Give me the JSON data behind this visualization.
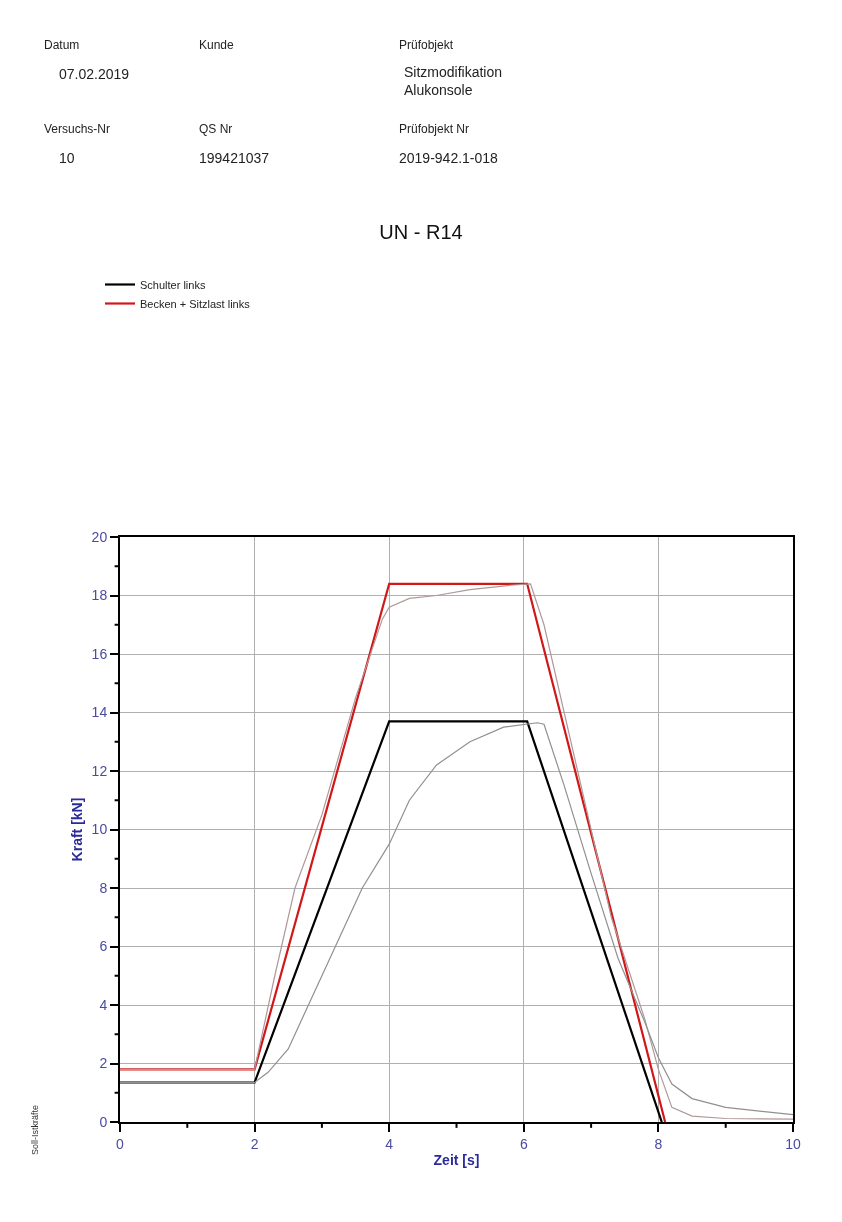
{
  "chart_data": {
    "type": "line",
    "title": "UN - R14",
    "xlabel": "Zeit [s]",
    "ylabel": "Kraft [kN]",
    "annotations": [
      "Datum",
      "07.02.2019",
      "Kunde",
      "Prüfobjekt",
      "Sitzmodifikation Alukonsole",
      "Versuchs-Nr",
      "10",
      "QS Nr",
      "199421037",
      "Prüfobjekt Nr",
      "2019-942.1-018",
      "Soll-Istkräfte"
    ],
    "series": [
      {
        "name": "Schulter links",
        "color": "#000000",
        "x": [
          0,
          2,
          4,
          6.05,
          8.05
        ],
        "values": [
          1.35,
          1.35,
          13.7,
          13.7,
          0
        ]
      },
      {
        "name": "Becken + Sitzlast links",
        "color": "#d01818",
        "x": [
          0,
          2,
          4,
          6.05,
          8.1
        ],
        "values": [
          1.8,
          1.8,
          18.4,
          18.4,
          0
        ]
      },
      {
        "color": "#b09898",
        "x": [
          0,
          2,
          2.3,
          2.6,
          3.0,
          3.5,
          3.9,
          4.0,
          4.3,
          4.7,
          5.2,
          5.8,
          6.1,
          6.3,
          6.8,
          7.3,
          7.8,
          8.0,
          8.2,
          8.5,
          9,
          10
        ],
        "values": [
          1.8,
          1.8,
          5,
          8,
          10.5,
          14.5,
          17.2,
          17.6,
          17.9,
          18.0,
          18.2,
          18.35,
          18.4,
          17,
          12,
          7,
          3.5,
          1.8,
          0.5,
          0.2,
          0.12,
          0.1
        ]
      },
      {
        "color": "#909090",
        "x": [
          0,
          2,
          2.2,
          2.5,
          2.8,
          3.2,
          3.6,
          4,
          4.3,
          4.7,
          5.2,
          5.7,
          6.2,
          6.3,
          6.6,
          7.0,
          7.4,
          7.8,
          8.0,
          8.2,
          8.5,
          9,
          10
        ],
        "values": [
          1.35,
          1.35,
          1.7,
          2.5,
          4,
          6,
          8,
          9.5,
          11,
          12.2,
          13,
          13.5,
          13.65,
          13.6,
          11.5,
          8.5,
          5.6,
          3.4,
          2.2,
          1.3,
          0.8,
          0.5,
          0.25
        ]
      }
    ],
    "xlim": [
      0,
      10
    ],
    "xticks": [
      0,
      {
        "value": 1,
        "label": null
      },
      2,
      {
        "value": 3,
        "label": null
      },
      4,
      {
        "value": 5,
        "label": null
      },
      6,
      {
        "value": 7,
        "label": null
      },
      8,
      {
        "value": 9,
        "label": null
      },
      10
    ],
    "ylim": [
      0,
      20
    ],
    "yticks": [
      0,
      {
        "value": 1,
        "label": null
      },
      2,
      {
        "value": 3,
        "label": null
      },
      4,
      {
        "value": 5,
        "label": null
      },
      6,
      {
        "value": 7,
        "label": null
      },
      8,
      {
        "value": 9,
        "label": null
      },
      10,
      {
        "value": 11,
        "label": null
      },
      12,
      {
        "value": 13,
        "label": null
      },
      14,
      {
        "value": 15,
        "label": null
      },
      16,
      {
        "value": 17,
        "label": null
      },
      18,
      {
        "value": 19,
        "label": null
      },
      20
    ],
    "grid": true,
    "legend": "top left",
    "line_style": "solid",
    "marker": "none"
  }
}
